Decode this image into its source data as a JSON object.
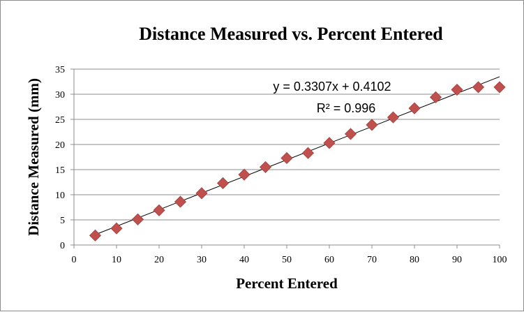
{
  "chart_data": {
    "type": "scatter",
    "title": "Distance Measured vs. Percent Entered",
    "xlabel": "Percent Entered",
    "ylabel": "Distance Measured (mm)",
    "xlim": [
      0,
      100
    ],
    "ylim": [
      0,
      35
    ],
    "x_ticks": [
      0,
      10,
      20,
      30,
      40,
      50,
      60,
      70,
      80,
      90,
      100
    ],
    "y_ticks": [
      0,
      5,
      10,
      15,
      20,
      25,
      30,
      35
    ],
    "grid": "horizontal",
    "legend": "none",
    "series": [
      {
        "marker": "diamond",
        "color": "#c0504d",
        "points": [
          {
            "x": 5,
            "y": 1.9
          },
          {
            "x": 10,
            "y": 3.3
          },
          {
            "x": 15,
            "y": 5.1
          },
          {
            "x": 20,
            "y": 6.9
          },
          {
            "x": 25,
            "y": 8.6
          },
          {
            "x": 30,
            "y": 10.3
          },
          {
            "x": 35,
            "y": 12.3
          },
          {
            "x": 40,
            "y": 14.0
          },
          {
            "x": 45,
            "y": 15.5
          },
          {
            "x": 50,
            "y": 17.3
          },
          {
            "x": 55,
            "y": 18.3
          },
          {
            "x": 60,
            "y": 20.3
          },
          {
            "x": 65,
            "y": 22.1
          },
          {
            "x": 70,
            "y": 23.9
          },
          {
            "x": 75,
            "y": 25.4
          },
          {
            "x": 80,
            "y": 27.2
          },
          {
            "x": 85,
            "y": 29.4
          },
          {
            "x": 90,
            "y": 30.9
          },
          {
            "x": 95,
            "y": 31.4
          },
          {
            "x": 100,
            "y": 31.4
          }
        ]
      }
    ],
    "trendline": {
      "type": "linear",
      "slope": 0.3307,
      "intercept": 0.4102,
      "x_range": [
        5,
        100
      ],
      "color": "#000000",
      "equation_label": "y = 0.3307x + 0.4102",
      "r2_label": "R² = 0.996"
    }
  }
}
